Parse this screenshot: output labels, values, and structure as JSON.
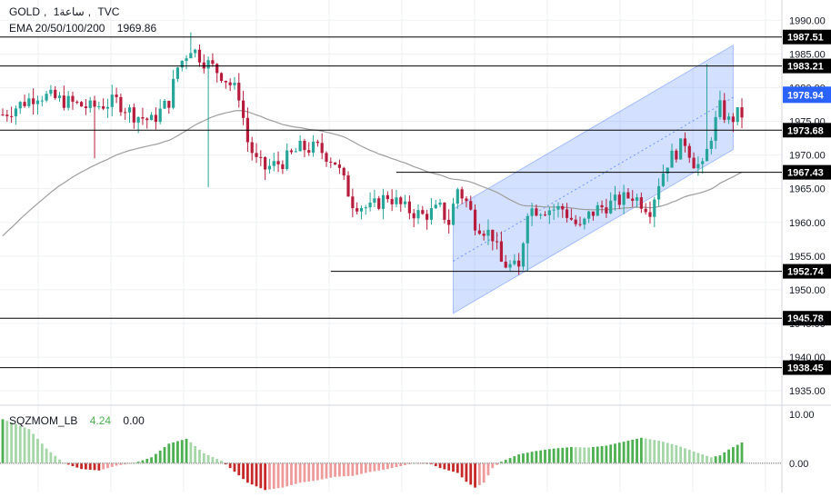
{
  "header": {
    "symbol": "GOLD",
    "interval": "1ساعة",
    "source": "TVC",
    "ema_label": "EMA 20/50/100/200",
    "ema_value": "1969.86"
  },
  "indicator": {
    "name": "SQZMOM_LB",
    "value": "4.24",
    "zero": "0.00",
    "ticks": [
      "10.00",
      "0.00"
    ]
  },
  "chart_data": {
    "type": "candlestick",
    "instrument": "GOLD",
    "timeframe": "1ساعة",
    "price_axis": {
      "min": 1933,
      "max": 1993,
      "ticks": [
        "1990.00",
        "1985.00",
        "1980.00",
        "1975.00",
        "1970.00",
        "1965.00",
        "1960.00",
        "1955.00",
        "1950.00",
        "1945.00",
        "1940.00",
        "1935.00"
      ]
    },
    "levels": [
      {
        "label": "1987.51",
        "value": 1987.51,
        "full_width": true
      },
      {
        "label": "1983.21",
        "value": 1983.21,
        "full_width": true
      },
      {
        "label": "1973.68",
        "value": 1973.68,
        "full_width": true
      },
      {
        "label": "1967.43",
        "value": 1967.43,
        "full_width": false,
        "start_bar": 90
      },
      {
        "label": "1952.74",
        "value": 1952.74,
        "full_width": false,
        "start_bar": 75
      },
      {
        "label": "1945.78",
        "value": 1945.78,
        "full_width": true
      },
      {
        "label": "1938.45",
        "value": 1938.45,
        "full_width": true
      }
    ],
    "current_price": {
      "label": "1978.94",
      "value": 1978.94,
      "color": "#2962ff"
    },
    "channel": {
      "lower_start": {
        "bar": 103,
        "price": 1946.5
      },
      "upper_start": {
        "bar": 103,
        "price": 1962.0
      },
      "lower_end": {
        "bar": 167,
        "price": 1970.8
      },
      "upper_end": {
        "bar": 167,
        "price": 1986.3
      },
      "fill": "#2962ff"
    },
    "ema_line_color": "#9e9e9e",
    "up_color": "#26a69a",
    "down_color": "#b71c3c",
    "candles": [],
    "ema": [],
    "momentum": []
  },
  "colors": {
    "background": "#ffffff",
    "grid": "#eef0f4",
    "level_line": "#000000",
    "axis_text": "#131722",
    "mom_up_strong": "#4caf50",
    "mom_up_weak": "#a5d6a7",
    "mom_down_strong": "#c62828",
    "mom_down_weak": "#ef9a9a"
  }
}
